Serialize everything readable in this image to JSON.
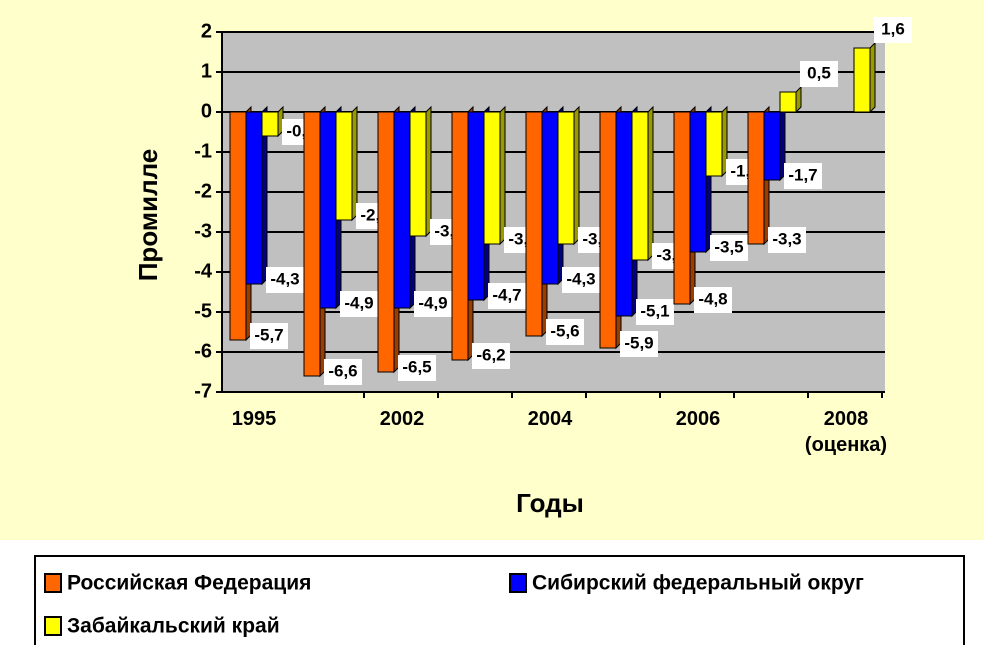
{
  "chart_data": {
    "type": "bar",
    "y_axis_label": "Промилле",
    "x_axis_label": "Годы",
    "categories": [
      "1995",
      null,
      "2002",
      null,
      "2004",
      null,
      "2006",
      null,
      "2008 (оценка)"
    ],
    "series": [
      {
        "name": "Российская Федерация",
        "color": "#ff6600",
        "values": [
          -5.7,
          -6.6,
          -6.5,
          -6.2,
          -5.6,
          -5.9,
          -4.8,
          -3.3,
          null
        ],
        "value_labels": [
          "-5,7",
          "-6,6",
          "-6,5",
          "-6,2",
          "-5,6",
          "-5,9",
          "-4,8",
          "-3,3",
          null
        ]
      },
      {
        "name": "Сибирский федеральный округ",
        "color": "#0000ff",
        "values": [
          -4.3,
          -4.9,
          -4.9,
          -4.7,
          -4.3,
          -5.1,
          -3.5,
          -1.7,
          null
        ],
        "value_labels": [
          "-4,3",
          "-4,9",
          "-4,9",
          "-4,7",
          "-4,3",
          "-5,1",
          "-3,5",
          "-1,7",
          null
        ]
      },
      {
        "name": "Забайкальский край",
        "color": "#ffff00",
        "values": [
          -0.6,
          -2.7,
          -3.1,
          -3.3,
          -3.3,
          -3.7,
          -1.6,
          0.5,
          1.6
        ],
        "value_labels": [
          "-0,6",
          "-2,7",
          "-3,1",
          "-3,3",
          "-3,3",
          "-3,7",
          "-1,6",
          "0,5",
          "1,6"
        ]
      }
    ],
    "ylim": [
      -7,
      2
    ],
    "yticks": [
      -7,
      -6,
      -5,
      -4,
      -3,
      -2,
      -1,
      0,
      1,
      2
    ],
    "grid": true
  }
}
